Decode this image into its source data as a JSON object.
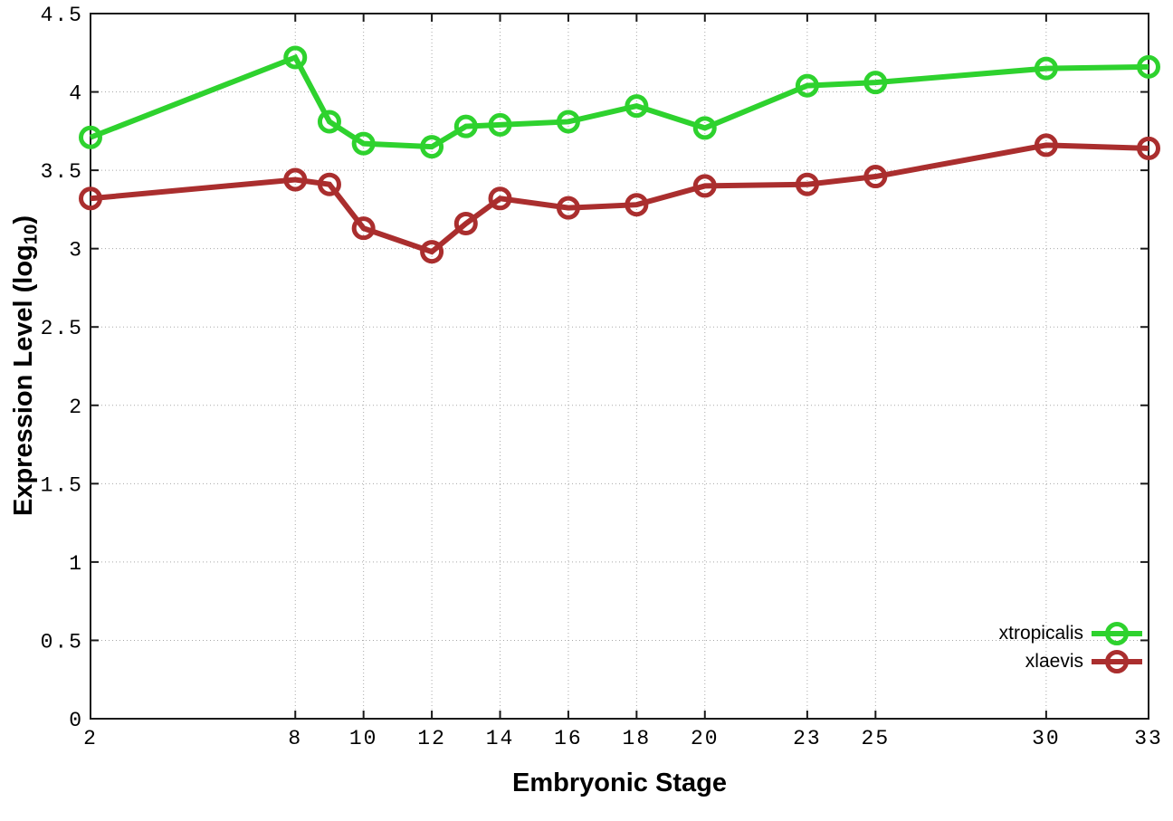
{
  "chart_data": {
    "type": "line",
    "title": "",
    "xlabel": "Embryonic Stage",
    "ylabel": "Expression Level (log10)",
    "ylabel_parts": {
      "prefix": "Expression Level (log",
      "subscript": "10",
      "suffix": ")"
    },
    "x": [
      2,
      8,
      9,
      10,
      12,
      13,
      14,
      16,
      18,
      20,
      23,
      25,
      30,
      33
    ],
    "series": [
      {
        "name": "xtropicalis",
        "color": "#2ed22e",
        "values": [
          3.71,
          4.22,
          3.81,
          3.67,
          3.65,
          3.78,
          3.79,
          3.81,
          3.91,
          3.77,
          4.04,
          4.06,
          4.15,
          4.16
        ]
      },
      {
        "name": "xlaevis",
        "color": "#aa2e2e",
        "values": [
          3.32,
          3.44,
          3.41,
          3.13,
          2.98,
          3.16,
          3.32,
          3.26,
          3.28,
          3.4,
          3.41,
          3.46,
          3.66,
          3.64
        ]
      }
    ],
    "xlim": [
      2,
      33
    ],
    "ylim": [
      0,
      4.5
    ],
    "x_ticks": [
      2,
      8,
      10,
      12,
      14,
      16,
      18,
      20,
      23,
      25,
      30,
      33
    ],
    "x_tick_labels": [
      "2",
      "8",
      "10",
      "12",
      "14",
      "16",
      "18",
      "20",
      "23",
      "25",
      "30",
      "33"
    ],
    "y_ticks": [
      0,
      0.5,
      1,
      1.5,
      2,
      2.5,
      3,
      3.5,
      4,
      4.5
    ],
    "y_tick_labels": [
      "0",
      "0.5",
      "1",
      "1.5",
      "2",
      "2.5",
      "3",
      "3.5",
      "4",
      "4.5"
    ],
    "grid": true,
    "legend_position": "inside bottom-right",
    "marker": "open-circle",
    "colors": {
      "grid": "#a8a8a8",
      "axis": "#1a1a1a",
      "text": "#000000",
      "background": "#ffffff"
    }
  }
}
